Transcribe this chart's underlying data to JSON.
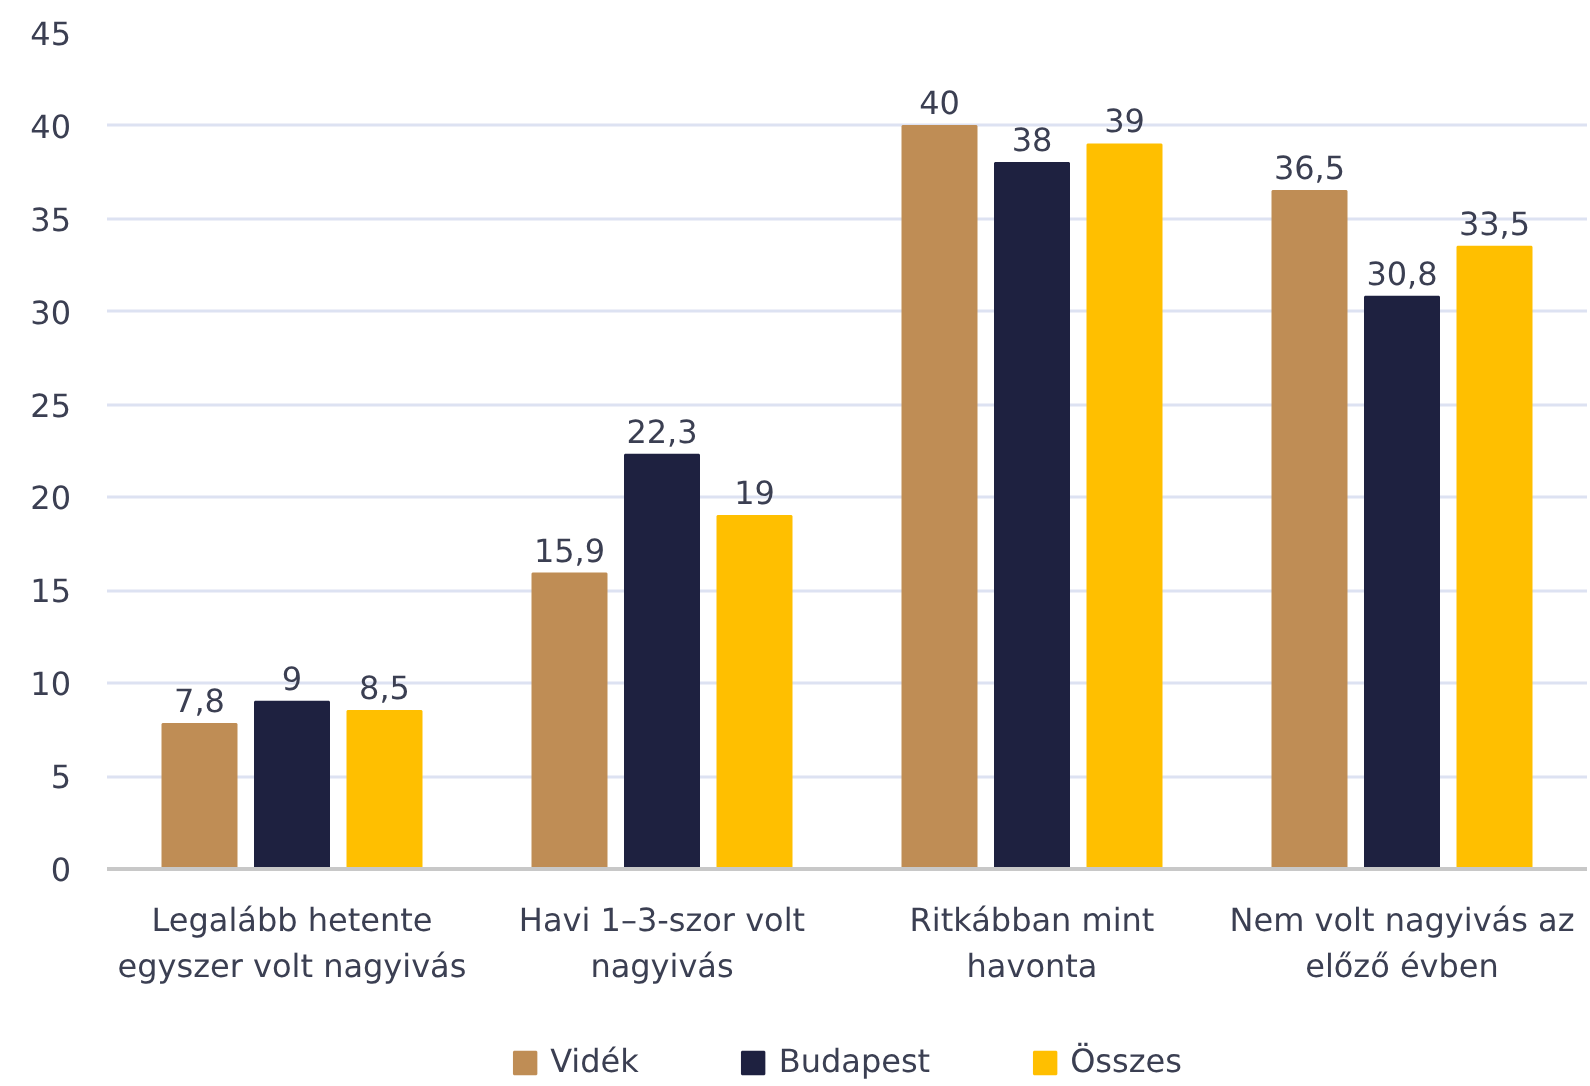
{
  "chart_data": {
    "type": "bar",
    "categories": [
      "Legalább hetente egyszer volt nagyivás",
      "Havi 1–3-szor volt nagyivás",
      "Ritkábban mint havonta",
      "Nem volt nagyivás az előző évben"
    ],
    "series": [
      {
        "name": "Vidék",
        "color": "#bf8d55",
        "values": [
          7.8,
          15.9,
          40,
          36.5
        ],
        "value_labels": [
          "7,8",
          "15,9",
          "40",
          "36,5"
        ]
      },
      {
        "name": "Budapest",
        "color": "#1e2140",
        "values": [
          9,
          22.3,
          38,
          30.8
        ],
        "value_labels": [
          "9",
          "22,3",
          "38",
          "30,8"
        ]
      },
      {
        "name": "Összes",
        "color": "#ffbf00",
        "values": [
          8.5,
          19,
          39,
          33.5
        ],
        "value_labels": [
          "8,5",
          "19",
          "39",
          "33,5"
        ]
      }
    ],
    "ylim": [
      0,
      45
    ],
    "yticks": [
      0,
      5,
      10,
      15,
      20,
      25,
      30,
      35,
      40,
      45
    ],
    "grid": "y",
    "legend": "bottom"
  }
}
